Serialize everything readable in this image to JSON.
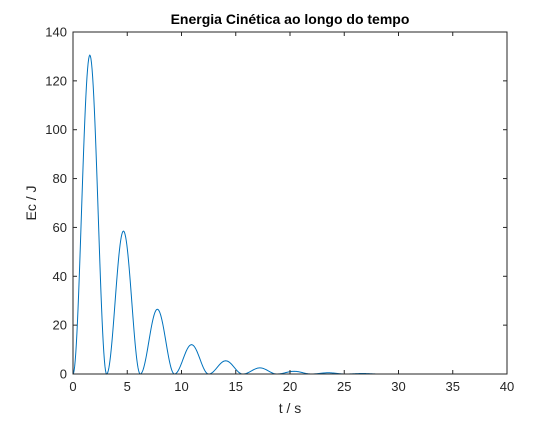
{
  "chart_data": {
    "type": "line",
    "title": "Energia Cinética ao longo do tempo",
    "xlabel": "t / s",
    "ylabel": "Ec / J",
    "xlim": [
      0,
      40
    ],
    "ylim": [
      0,
      140
    ],
    "xticks": [
      0,
      5,
      10,
      15,
      20,
      25,
      30,
      35,
      40
    ],
    "yticks": [
      0,
      20,
      40,
      60,
      80,
      100,
      120,
      140
    ],
    "grid": false,
    "line_color": "#0072BD",
    "axis_color": "#262626",
    "series": [
      {
        "peaks": [
          {
            "t": 1.45,
            "value": 130.5
          },
          {
            "t": 4.6,
            "value": 58.5
          },
          {
            "t": 7.75,
            "value": 26.5
          },
          {
            "t": 10.9,
            "value": 12.0
          },
          {
            "t": 14.05,
            "value": 5.4
          },
          {
            "t": 17.2,
            "value": 2.5
          },
          {
            "t": 20.35,
            "value": 1.1
          },
          {
            "t": 23.5,
            "value": 0.5
          },
          {
            "t": 26.65,
            "value": 0.2
          }
        ],
        "zeros": [
          0,
          3.1,
          6.2,
          9.35,
          12.5,
          15.65,
          18.8,
          21.95,
          25.1,
          28.25,
          40
        ]
      }
    ]
  }
}
